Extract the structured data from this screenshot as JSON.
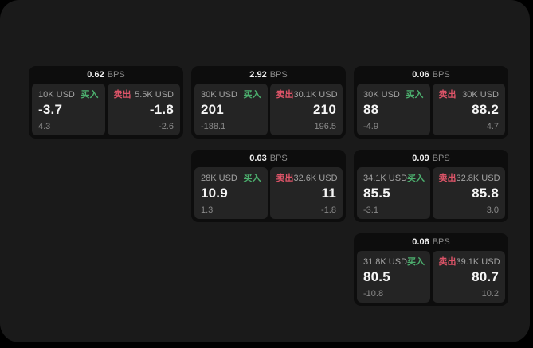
{
  "labels": {
    "bps_unit": "BPS",
    "buy": "买入",
    "sell": "卖出"
  },
  "colors": {
    "background": "#000000",
    "panel": "#1a1a1a",
    "card": "#0d0d0d",
    "subpanel": "#242424",
    "buy_accent": "#4caf6e",
    "sell_accent": "#dd5468",
    "primary_text": "#f5f5f5",
    "muted_text": "#8a8a8a"
  },
  "cards": [
    {
      "bps": "0.62",
      "buy": {
        "amount": "10K USD",
        "price": "-3.7",
        "change": "4.3"
      },
      "sell": {
        "amount": "5.5K USD",
        "price": "-1.8",
        "change": "-2.6"
      }
    },
    {
      "bps": "2.92",
      "buy": {
        "amount": "30K USD",
        "price": "201",
        "change": "-188.1"
      },
      "sell": {
        "amount": "30.1K USD",
        "price": "210",
        "change": "196.5"
      }
    },
    {
      "bps": "0.06",
      "buy": {
        "amount": "30K USD",
        "price": "88",
        "change": "-4.9"
      },
      "sell": {
        "amount": "30K USD",
        "price": "88.2",
        "change": "4.7"
      }
    },
    {
      "bps": "0.03",
      "buy": {
        "amount": "28K USD",
        "price": "10.9",
        "change": "1.3"
      },
      "sell": {
        "amount": "32.6K USD",
        "price": "11",
        "change": "-1.8"
      }
    },
    {
      "bps": "0.09",
      "buy": {
        "amount": "34.1K USD",
        "price": "85.5",
        "change": "-3.1"
      },
      "sell": {
        "amount": "32.8K USD",
        "price": "85.8",
        "change": "3.0"
      }
    },
    {
      "bps": "0.06",
      "buy": {
        "amount": "31.8K USD",
        "price": "80.5",
        "change": "-10.8"
      },
      "sell": {
        "amount": "39.1K USD",
        "price": "80.7",
        "change": "10.2"
      }
    }
  ]
}
